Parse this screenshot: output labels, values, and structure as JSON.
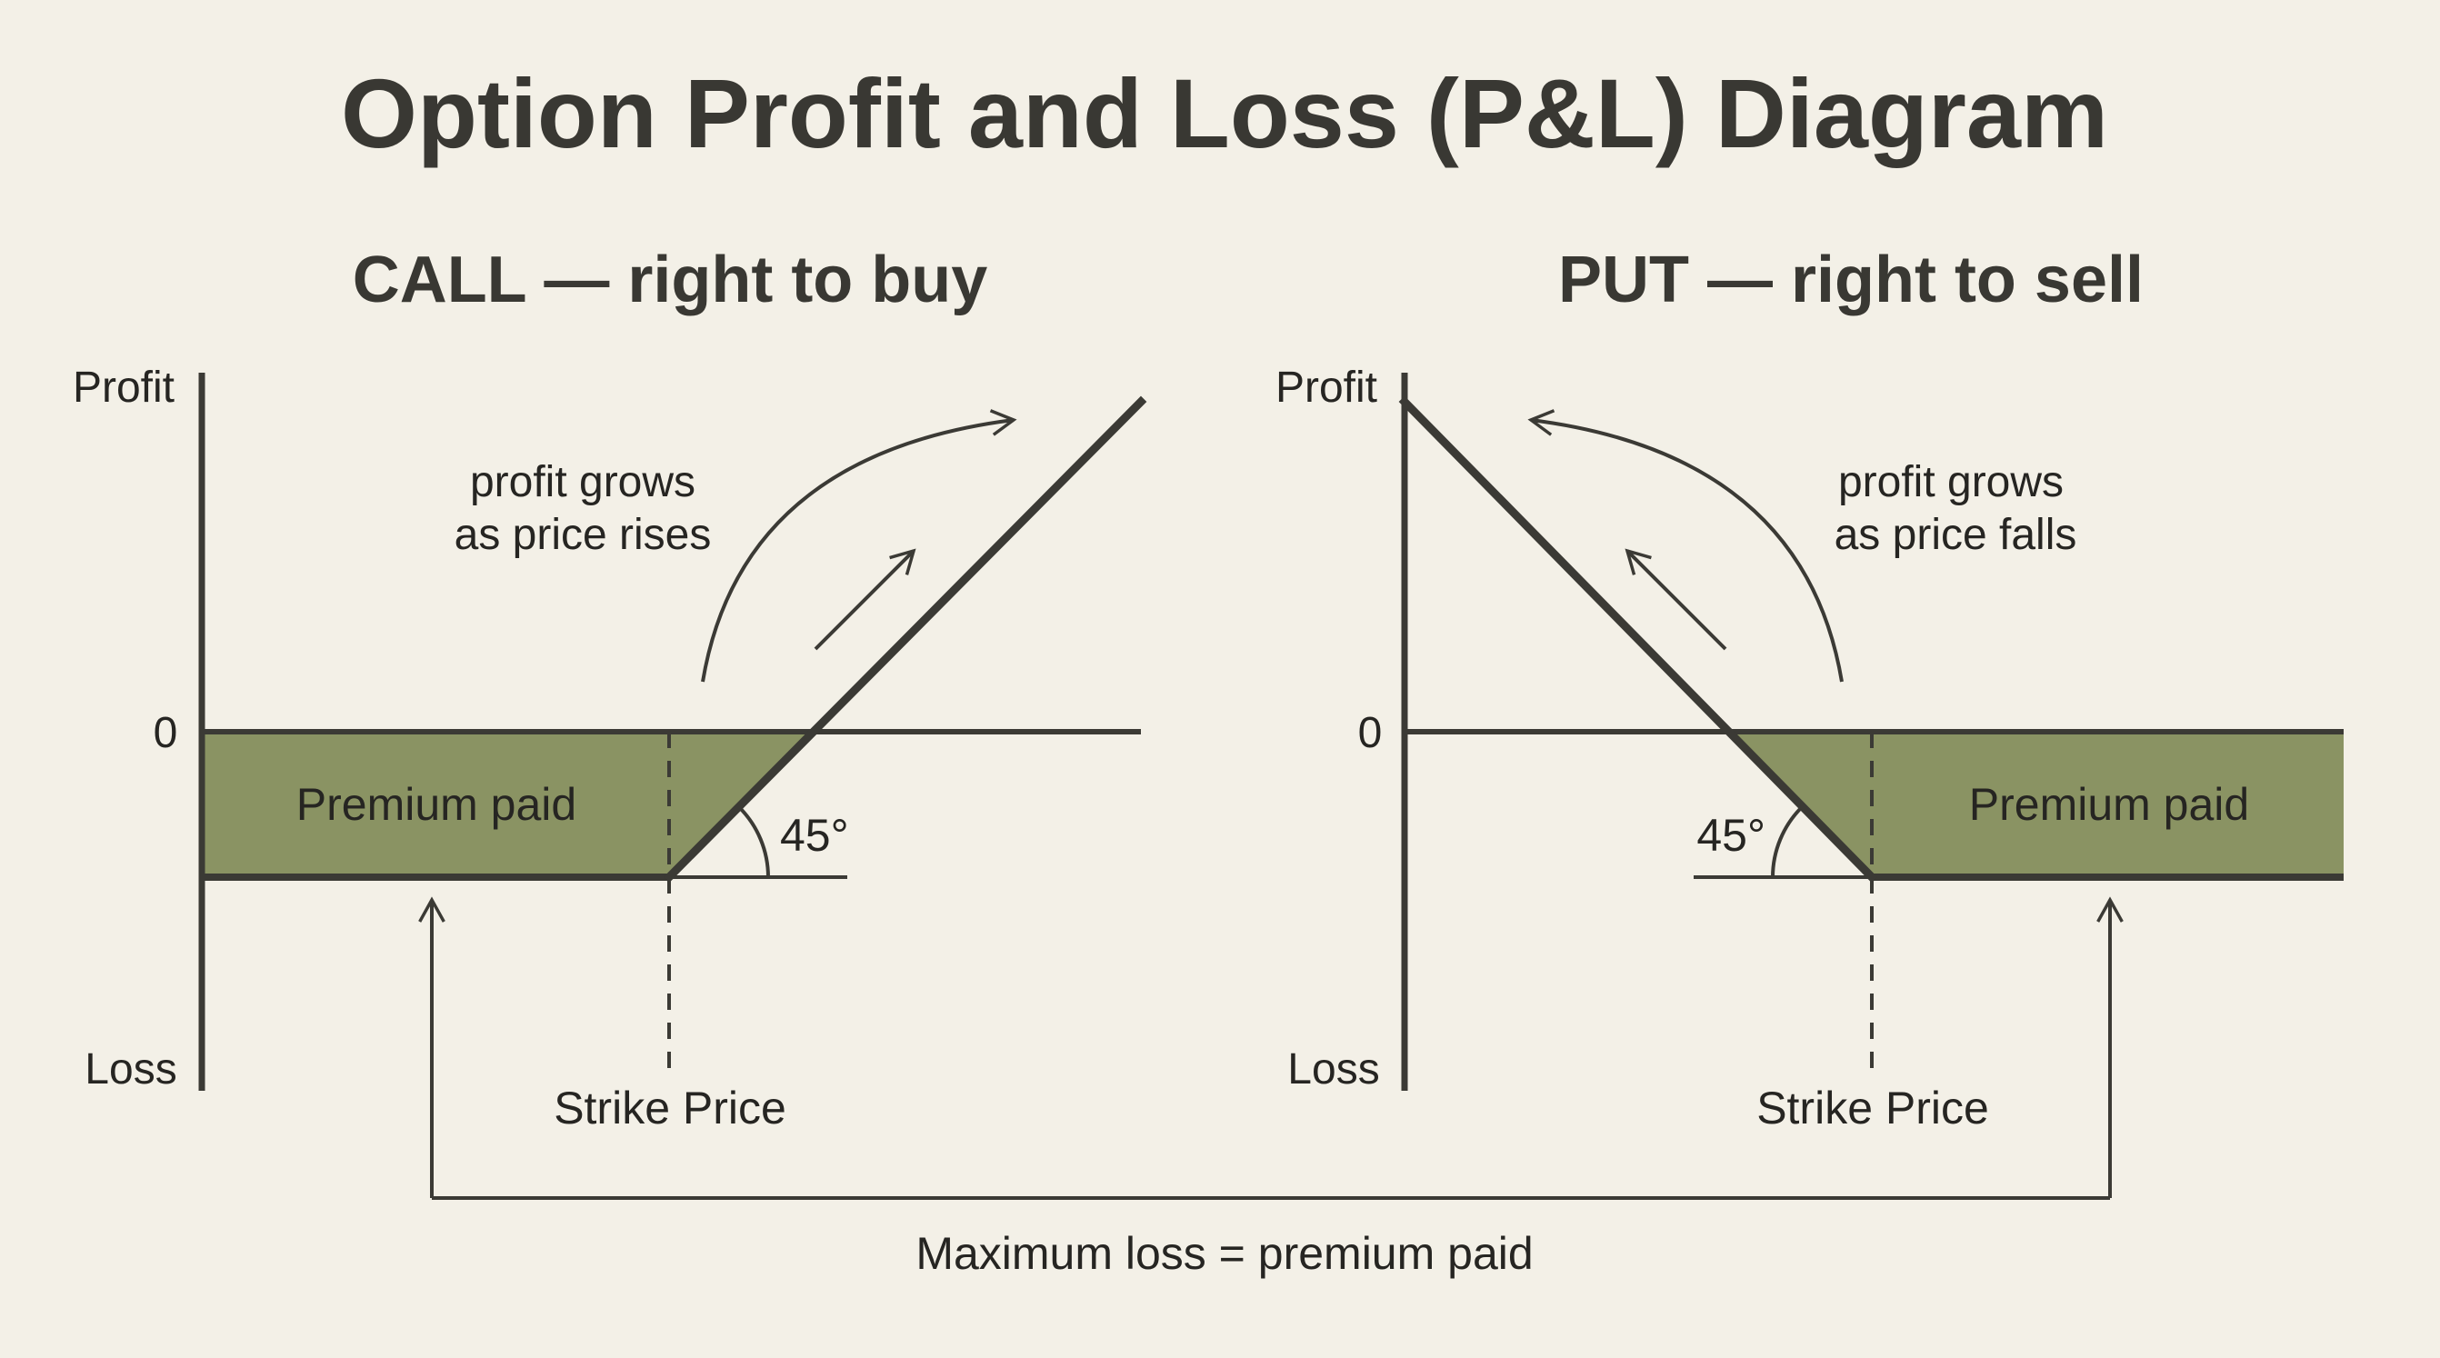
{
  "title": "Option Profit and Loss (P&L) Diagram",
  "call": {
    "subtitle": "CALL — right to buy",
    "axis_top": "Profit",
    "axis_bottom": "Loss",
    "zero": "0",
    "note_line1": "profit grows",
    "note_line2": "as price rises",
    "region_label": "Premium paid",
    "angle": "45°",
    "strike_label": "Strike Price"
  },
  "put": {
    "subtitle": "PUT — right to sell",
    "axis_top": "Profit",
    "axis_bottom": "Loss",
    "zero": "0",
    "note_line1": "profit grows",
    "note_line2": "as price falls",
    "region_label": "Premium paid",
    "angle": "45°",
    "strike_label": "Strike Price"
  },
  "footer": "Maximum loss = premium paid",
  "colors": {
    "background": "#f3f0e7",
    "premium_fill": "#8a9363",
    "line": "#3b3a35",
    "text": "#262522"
  }
}
